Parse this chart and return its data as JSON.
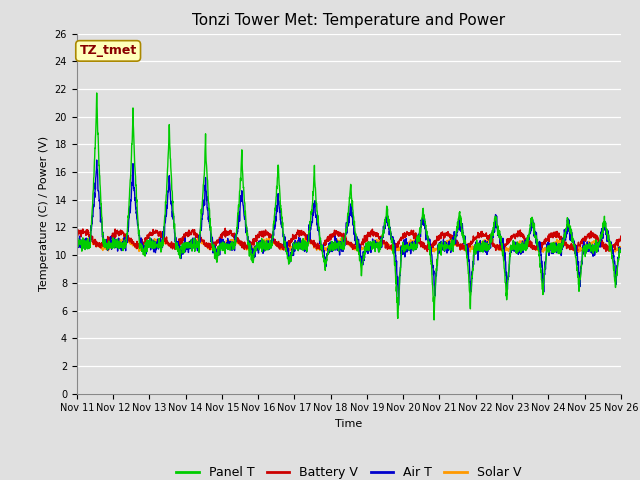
{
  "title": "Tonzi Tower Met: Temperature and Power",
  "xlabel": "Time",
  "ylabel": "Temperature (C) / Power (V)",
  "ylim": [
    0,
    26
  ],
  "yticks": [
    0,
    2,
    4,
    6,
    8,
    10,
    12,
    14,
    16,
    18,
    20,
    22,
    24,
    26
  ],
  "x_labels": [
    "Nov 11",
    "Nov 12",
    "Nov 13",
    "Nov 14",
    "Nov 15",
    "Nov 16",
    "Nov 17",
    "Nov 18",
    "Nov 19",
    "Nov 20",
    "Nov 21",
    "Nov 22",
    "Nov 23",
    "Nov 24",
    "Nov 25",
    "Nov 26"
  ],
  "background_color": "#e0e0e0",
  "plot_bg_color": "#e0e0e0",
  "legend_entries": [
    "Panel T",
    "Battery V",
    "Air T",
    "Solar V"
  ],
  "legend_colors": [
    "#00cc00",
    "#cc0000",
    "#0000cc",
    "#ff9900"
  ],
  "annotation_text": "TZ_tmet",
  "annotation_color": "#880000",
  "annotation_bg": "#ffffbb",
  "title_fontsize": 11,
  "axis_fontsize": 8,
  "legend_fontsize": 9
}
